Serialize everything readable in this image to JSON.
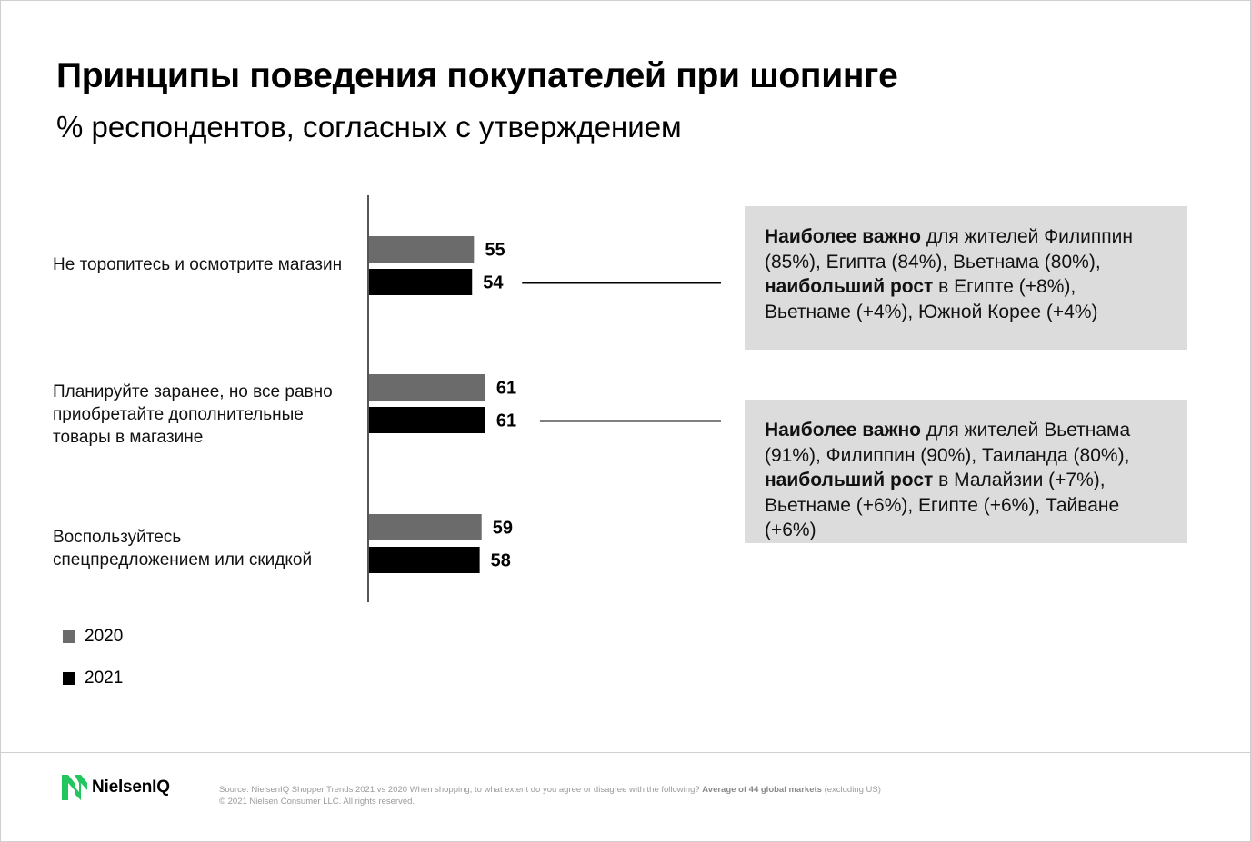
{
  "title": "Принципы поведения покупателей при шопинге",
  "subtitle": "% респондентов, согласных с утверждением",
  "colors": {
    "y2020": "#6b6b6b",
    "y2021": "#000000",
    "note_bg": "#dcdcdc",
    "logo_green": "#22c55e"
  },
  "chart_data": {
    "type": "bar",
    "orientation": "horizontal",
    "categories": [
      "Не торопитесь и осмотрите магазин",
      "Планируйте заранее, но все равно приобретайте дополнительные товары в магазине",
      "Воспользуйтесь спецпредложением или скидкой"
    ],
    "series": [
      {
        "name": "2020",
        "values": [
          55,
          61,
          59
        ]
      },
      {
        "name": "2021",
        "values": [
          54,
          61,
          58
        ]
      }
    ],
    "legend_position": "bottom-left",
    "grid": false
  },
  "labels": {
    "cat1_lines": [
      "Не торопитесь и осмотрите магазин"
    ],
    "cat2_lines": [
      "Планируйте заранее, но все равно",
      "приобретайте дополнительные",
      "товары в магазине"
    ],
    "cat3_lines": [
      "Воспользуйтесь",
      "спецпредложением или скидкой"
    ]
  },
  "notes": [
    {
      "bold1": "Наиболее важно",
      "text1": " для жителей Филиппин",
      "line2": "(85%), Египта (84%), Вьетнама (80%),",
      "bold2": "наибольший рост",
      "text2": " в Египте (+8%),",
      "line4": "Вьетнаме (+4%), Южной Корее (+4%)"
    },
    {
      "bold1": "Наиболее важно",
      "text1": " для жителей Вьетнама",
      "line2": "(91%), Филиппин (90%), Таиланда (80%),",
      "bold2": "наибольший рост",
      "text2": " в Малайзии (+7%),",
      "line4": "Вьетнаме (+6%), Египте (+6%), Тайване (+6%)"
    }
  ],
  "footer": {
    "logo": "NielsenIQ",
    "source_prefix": "Source: NielsenIQ Shopper Trends 2021 vs 2020  When shopping, to what extent do you agree or disagree with the following? ",
    "source_bold": "Average of 44 global markets",
    "source_suffix": " (excluding US)",
    "copyright": "© 2021 Nielsen Consumer LLC. All rights reserved."
  }
}
